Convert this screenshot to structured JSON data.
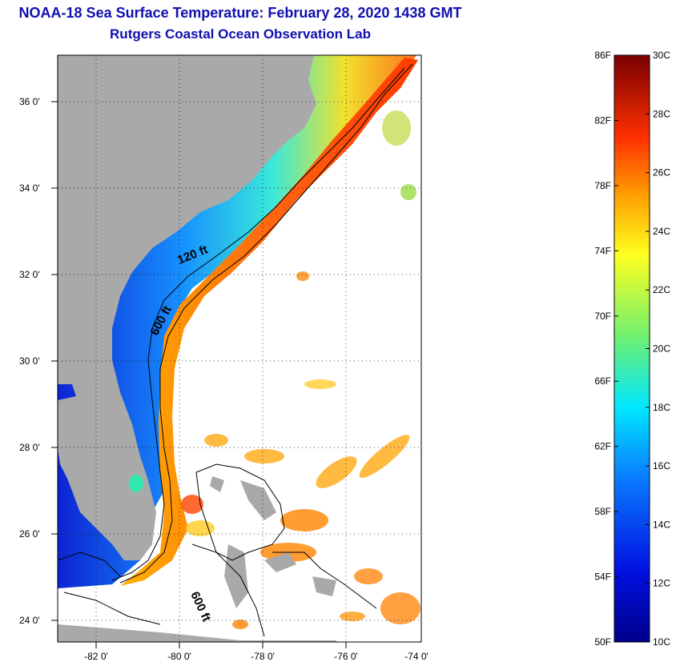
{
  "header": {
    "title": "NOAA-18 Sea Surface Temperature:  February 28, 2020 1438 GMT",
    "subtitle": "Rutgers Coastal Ocean Observation Lab"
  },
  "map": {
    "lon_ticks": [
      "-82 0'",
      "-80 0'",
      "-78 0'",
      "-76 0'",
      "-74 0'"
    ],
    "lat_ticks": [
      "36 0'",
      "34 0'",
      "32 0'",
      "30 0'",
      "28 0'",
      "26 0'",
      "24 0'"
    ],
    "contour_labels": [
      "120 ft",
      "600 ft",
      "600 ft"
    ]
  },
  "colorbar": {
    "fahrenheit": [
      "86F",
      "82F",
      "78F",
      "74F",
      "70F",
      "66F",
      "62F",
      "58F",
      "54F",
      "50F"
    ],
    "celsius": [
      "30C",
      "28C",
      "26C",
      "24C",
      "22C",
      "20C",
      "18C",
      "16C",
      "14C",
      "12C",
      "10C"
    ]
  },
  "colors": {
    "title": "#1010b0",
    "land": "#a9a9a9",
    "ocean_missing": "#ffffff"
  }
}
